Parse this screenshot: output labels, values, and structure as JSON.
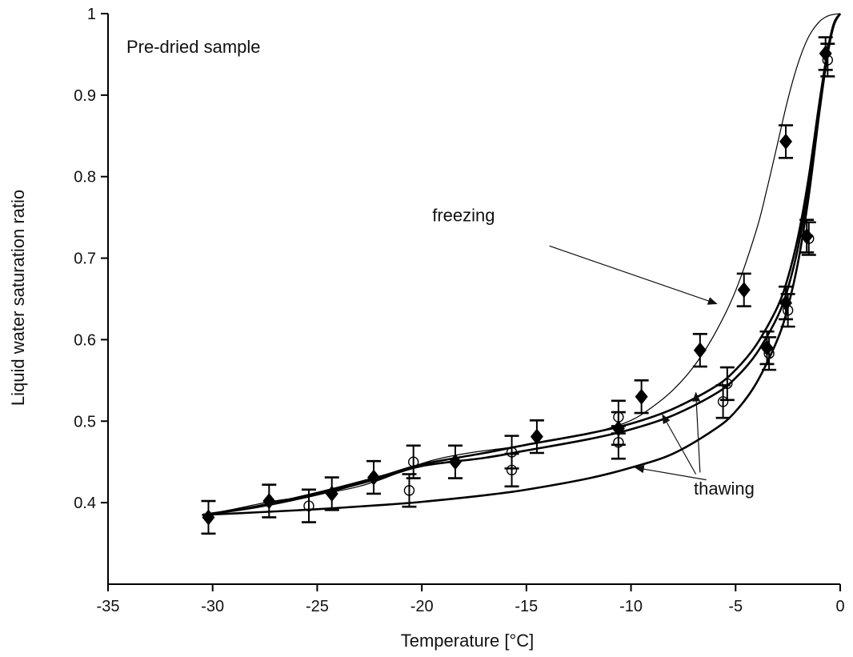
{
  "chart_data": {
    "type": "scatter",
    "title": "",
    "annotation_sample": "Pre-dried sample",
    "xlabel": "Temperature [°C]",
    "ylabel": "Liquid water saturation ratio",
    "xlim": [
      -35,
      0
    ],
    "ylim": [
      0.3,
      1.0
    ],
    "x_ticks": [
      -35,
      -30,
      -25,
      -20,
      -15,
      -10,
      -5,
      0
    ],
    "y_ticks": [
      0.4,
      0.5,
      0.6,
      0.7,
      0.8,
      0.9,
      1.0
    ],
    "y_tick_labels": [
      "0.4",
      "0.5",
      "0.6",
      "0.7",
      "0.8",
      "0.9",
      "1"
    ],
    "grid": false,
    "series": [
      {
        "marker": "filled-diamond",
        "points": [
          {
            "x": -30.2,
            "y": 0.382,
            "err": 0.02
          },
          {
            "x": -27.3,
            "y": 0.402,
            "err": 0.02
          },
          {
            "x": -24.3,
            "y": 0.411,
            "err": 0.02
          },
          {
            "x": -22.3,
            "y": 0.431,
            "err": 0.02
          },
          {
            "x": -18.4,
            "y": 0.45,
            "err": 0.02
          },
          {
            "x": -14.5,
            "y": 0.481,
            "err": 0.02
          },
          {
            "x": -10.6,
            "y": 0.491,
            "err": 0.02
          },
          {
            "x": -9.5,
            "y": 0.53,
            "err": 0.02
          },
          {
            "x": -6.7,
            "y": 0.587,
            "err": 0.02
          },
          {
            "x": -4.6,
            "y": 0.661,
            "err": 0.02
          },
          {
            "x": -3.5,
            "y": 0.59,
            "err": 0.02
          },
          {
            "x": -2.6,
            "y": 0.843,
            "err": 0.02
          },
          {
            "x": -2.6,
            "y": 0.645,
            "err": 0.02
          },
          {
            "x": -1.6,
            "y": 0.727,
            "err": 0.02
          },
          {
            "x": -0.7,
            "y": 0.951,
            "err": 0.02
          }
        ]
      },
      {
        "marker": "open-circle",
        "points": [
          {
            "x": -25.4,
            "y": 0.396,
            "err": 0.02
          },
          {
            "x": -20.6,
            "y": 0.415,
            "err": 0.02
          },
          {
            "x": -20.4,
            "y": 0.45,
            "err": 0.02
          },
          {
            "x": -15.7,
            "y": 0.44,
            "err": 0.02
          },
          {
            "x": -15.7,
            "y": 0.462,
            "err": 0.02
          },
          {
            "x": -10.6,
            "y": 0.474,
            "err": 0.02
          },
          {
            "x": -10.6,
            "y": 0.505,
            "err": 0.02
          },
          {
            "x": -5.6,
            "y": 0.524,
            "err": 0.02
          },
          {
            "x": -5.4,
            "y": 0.546,
            "err": 0.02
          },
          {
            "x": -3.4,
            "y": 0.583,
            "err": 0.02
          },
          {
            "x": -2.5,
            "y": 0.636,
            "err": 0.02
          },
          {
            "x": -1.5,
            "y": 0.724,
            "err": 0.02
          },
          {
            "x": -0.6,
            "y": 0.943,
            "err": 0.02
          }
        ]
      }
    ],
    "curves": [
      {
        "kind": "freezing",
        "stroke_width": 1.2,
        "x": [
          -30.5,
          -29,
          -27.3,
          -26,
          -24.3,
          -23,
          -22,
          -21,
          -20,
          -19,
          -17.5,
          -16,
          -14.5,
          -13,
          -11.5,
          -10,
          -9,
          -8,
          -7,
          -6,
          -5,
          -4,
          -3.5,
          -3,
          -2.5,
          -2,
          -1.5,
          -1,
          -0.6,
          -0.3,
          0
        ],
        "y": [
          0.385,
          0.392,
          0.401,
          0.406,
          0.413,
          0.42,
          0.428,
          0.438,
          0.448,
          0.455,
          0.462,
          0.467,
          0.473,
          0.48,
          0.488,
          0.501,
          0.517,
          0.538,
          0.567,
          0.607,
          0.66,
          0.735,
          0.785,
          0.84,
          0.895,
          0.94,
          0.972,
          0.99,
          0.997,
          0.999,
          1.0
        ]
      },
      {
        "kind": "thawing-upper",
        "stroke_width": 2.6,
        "x": [
          -30.5,
          -28,
          -25,
          -22,
          -20,
          -17,
          -15,
          -12,
          -10,
          -8,
          -6,
          -5,
          -4,
          -3,
          -2.5,
          -2,
          -1.5,
          -1,
          -0.6,
          -0.3,
          0
        ],
        "y": [
          0.385,
          0.395,
          0.412,
          0.432,
          0.447,
          0.461,
          0.471,
          0.485,
          0.497,
          0.515,
          0.542,
          0.563,
          0.594,
          0.64,
          0.676,
          0.728,
          0.8,
          0.89,
          0.955,
          0.988,
          1.0
        ]
      },
      {
        "kind": "thawing-middle",
        "stroke_width": 2.6,
        "x": [
          -30.5,
          -28,
          -25,
          -22,
          -20,
          -17,
          -15,
          -12,
          -10,
          -8,
          -6,
          -5,
          -4,
          -3,
          -2.5,
          -2,
          -1.5,
          -1,
          -0.6,
          -0.3,
          0
        ],
        "y": [
          0.385,
          0.394,
          0.41,
          0.43,
          0.445,
          0.455,
          0.464,
          0.478,
          0.49,
          0.507,
          0.533,
          0.553,
          0.583,
          0.628,
          0.663,
          0.715,
          0.79,
          0.885,
          0.953,
          0.987,
          1.0
        ]
      },
      {
        "kind": "thawing-lower",
        "stroke_width": 2.6,
        "x": [
          -30.5,
          -28,
          -25,
          -22,
          -20,
          -17,
          -15,
          -12,
          -10,
          -8,
          -6,
          -5,
          -4,
          -3,
          -2.5,
          -2,
          -1.5,
          -1,
          -0.6,
          -0.3,
          0
        ],
        "y": [
          0.385,
          0.388,
          0.392,
          0.397,
          0.401,
          0.409,
          0.416,
          0.43,
          0.443,
          0.46,
          0.49,
          0.512,
          0.547,
          0.6,
          0.64,
          0.697,
          0.777,
          0.878,
          0.95,
          0.986,
          1.0
        ]
      }
    ],
    "annotations": [
      {
        "text": "freezing",
        "x": -19.5,
        "y": 0.745,
        "arrow_from": [
          -13.9,
          0.715
        ],
        "arrow_to": [
          -5.9,
          0.644
        ]
      },
      {
        "text": "thawing",
        "x": -7.0,
        "y": 0.41,
        "arrows": [
          {
            "from": [
              -6.4,
              0.428
            ],
            "to": [
              -9.8,
              0.443
            ]
          },
          {
            "from": [
              -6.9,
              0.435
            ],
            "to": [
              -8.5,
              0.508
            ]
          },
          {
            "from": [
              -6.7,
              0.437
            ],
            "to": [
              -6.9,
              0.535
            ]
          }
        ]
      }
    ]
  }
}
